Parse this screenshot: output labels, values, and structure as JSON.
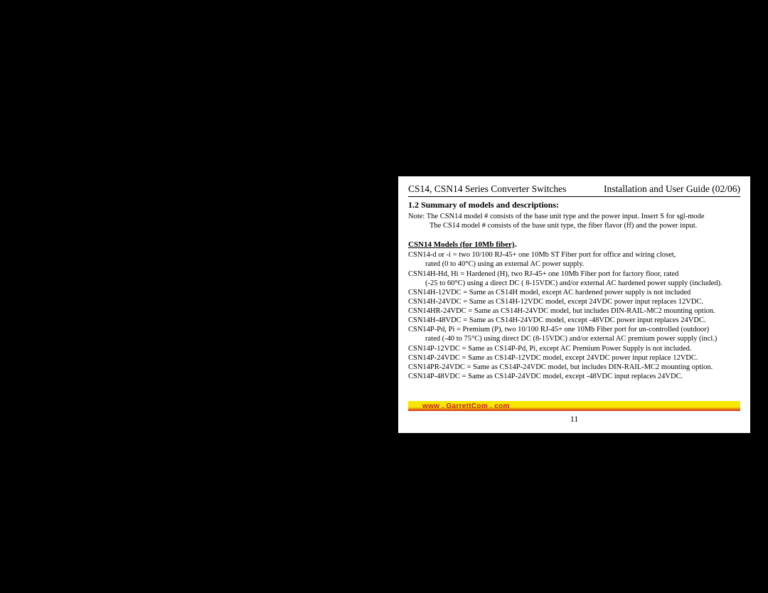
{
  "header": {
    "left": "CS14, CSN14 Series Converter Switches",
    "right": "Installation and User Guide (02/06)"
  },
  "section": {
    "number_title": "1.2   Summary of models and descriptions:",
    "note_line1": "Note: The CSN14 model # consists of the base unit type and the power input.  Insert S for sgl-mode",
    "note_line2": "The CS14 model # consists of the base unit type, the fiber flavor (ff) and the power input."
  },
  "models": {
    "title": "CSN14 Models (for 10Mb fiber)",
    "lines": [
      {
        "t": "CSN14-d or -i  = two 10/100 RJ-45+ one 10Mb ST Fiber port for office and wiring closet,",
        "indent": false
      },
      {
        "t": "rated (0 to 40°C)  using an external AC  power supply.",
        "indent": true
      },
      {
        "t": "CSN14H-Hd, Hi  = Hardened (H), two RJ-45+ one 10Mb Fiber port for factory floor, rated",
        "indent": false
      },
      {
        "t": "(-25 to 60°C) using a direct DC ( 8-15VDC) and/or external AC hardened power supply (included).",
        "indent": true
      },
      {
        "t": "CSN14H-12VDC = Same as CS14H model, except AC hardened power supply is not included",
        "indent": false
      },
      {
        "t": "CSN14H-24VDC = Same as CS14H-12VDC model, except  24VDC power input replaces 12VDC.",
        "indent": false
      },
      {
        "t": "CSN14HR-24VDC = Same as CS14H-24VDC model, but includes DIN-RAIL-MC2 mounting option.",
        "indent": false
      },
      {
        "t": "CSN14H-48VDC = Same as CS14H-24VDC model, except  -48VDC power input replaces 24VDC.",
        "indent": false
      },
      {
        "t": "CSN14P-Pd, Pi = Premium (P), two 10/100 RJ-45+ one 10Mb Fiber port for un-controlled (outdoor)",
        "indent": false
      },
      {
        "t": "rated (-40 to 75°C) using direct DC (8-15VDC) and/or external AC premium power supply (incl.)",
        "indent": true
      },
      {
        "t": "CSN14P-12VDC = Same as CS14P-Pd, Pi, except AC Premium Power Supply is not included.",
        "indent": false
      },
      {
        "t": "CSN14P-24VDC = Same as CS14P-12VDC model, except  24VDC power input replace 12VDC.",
        "indent": false
      },
      {
        "t": "CSN14PR-24VDC = Same as CS14P-24VDC model, but includes DIN-RAIL-MC2 mounting option.",
        "indent": false
      },
      {
        "t": "CSN14P-48VDC = Same as CS14P-24VDC model, except -48VDC input replaces 24VDC.",
        "indent": false
      }
    ]
  },
  "footer": {
    "url": "www . GarrettCom . com",
    "page_number": "11"
  },
  "colors": {
    "page_bg": "#ffffff",
    "body_bg": "#000000",
    "text": "#000000",
    "bar_yellow": "#f7e600",
    "bar_red": "#d62c1a",
    "url_color": "#c41e1e"
  },
  "typography": {
    "body_family": "Times New Roman",
    "footer_family": "Arial",
    "header_size_pt": 13.5,
    "body_size_pt": 10.5,
    "section_size_pt": 12
  }
}
